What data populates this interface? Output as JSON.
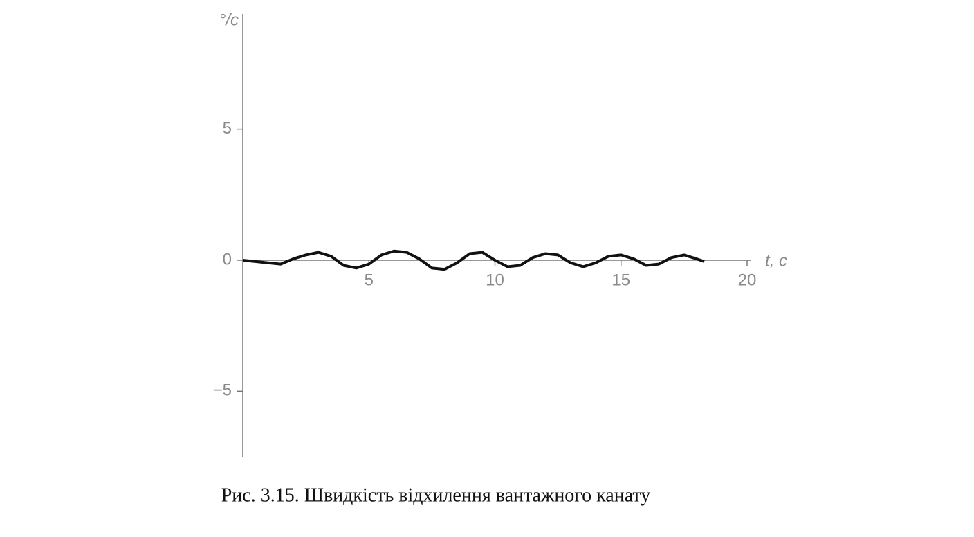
{
  "chart_data": {
    "type": "line",
    "y_label": "°/c",
    "x_label": "t, c",
    "caption": "Рис. 3.15. Швидкість відхилення вантажного канату",
    "x": [
      0,
      0.5,
      1,
      1.5,
      2,
      2.5,
      3,
      3.5,
      4,
      4.5,
      5,
      5.5,
      6,
      6.5,
      7,
      7.5,
      8,
      8.5,
      9,
      9.5,
      10,
      10.5,
      11,
      11.5,
      12,
      12.5,
      13,
      13.5,
      14,
      14.5,
      15,
      15.5,
      16,
      16.5,
      17,
      17.5,
      18,
      18.3
    ],
    "series": [
      {
        "color": "#111111",
        "values": [
          0,
          -0.05,
          -0.1,
          -0.15,
          0.05,
          0.2,
          0.3,
          0.15,
          -0.2,
          -0.3,
          -0.15,
          0.2,
          0.35,
          0.3,
          0.05,
          -0.3,
          -0.35,
          -0.1,
          0.25,
          0.3,
          0,
          -0.25,
          -0.2,
          0.1,
          0.25,
          0.2,
          -0.1,
          -0.25,
          -0.1,
          0.15,
          0.2,
          0.05,
          -0.2,
          -0.15,
          0.1,
          0.2,
          0.05,
          -0.05
        ]
      }
    ],
    "xlim": [
      0,
      20
    ],
    "ylim": [
      -7.5,
      9.4
    ],
    "xticks": [
      5,
      10,
      15,
      20
    ],
    "yticks": [
      {
        "value": -5,
        "label": "−5"
      },
      0,
      5
    ]
  }
}
